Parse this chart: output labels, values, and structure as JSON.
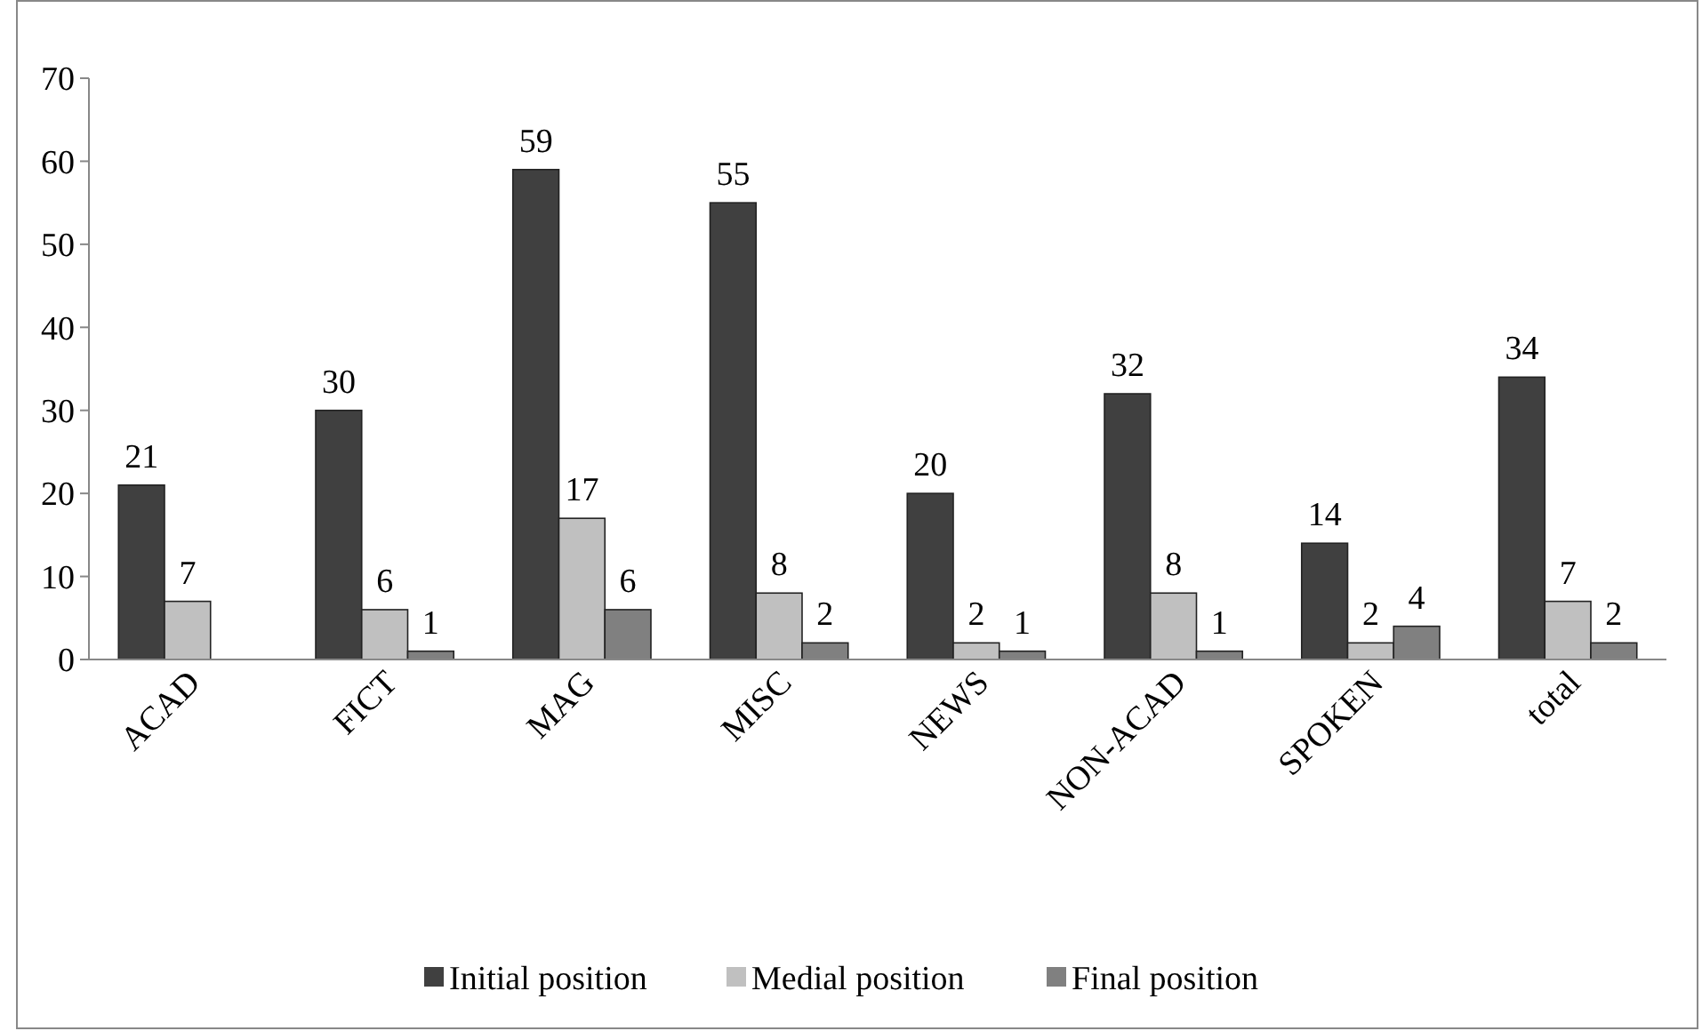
{
  "chart_data": {
    "type": "bar",
    "categories": [
      "ACAD",
      "FICT",
      "MAG",
      "MISC",
      "NEWS",
      "NON-ACAD",
      "SPOKEN",
      "total"
    ],
    "series": [
      {
        "name": "Initial position",
        "color": "#404040",
        "values": [
          21,
          30,
          59,
          55,
          20,
          32,
          14,
          34
        ],
        "value_labels": [
          "21",
          "30",
          "59",
          "55",
          "20",
          "32",
          "14",
          "34"
        ]
      },
      {
        "name": "Medial position",
        "color": "#c0c0c0",
        "values": [
          7,
          6,
          17,
          8,
          2,
          8,
          2,
          7
        ],
        "value_labels": [
          "7",
          "6",
          "17",
          "8",
          "2",
          "8",
          "2",
          "7"
        ]
      },
      {
        "name": "Final position",
        "color": "#808080",
        "values": [
          0,
          1,
          6,
          2,
          1,
          1,
          4,
          2
        ],
        "value_labels": [
          null,
          "1",
          "6",
          "2",
          "1",
          "1",
          "4",
          "2"
        ]
      }
    ],
    "ylim": [
      0,
      70
    ],
    "yticks": [
      0,
      10,
      20,
      30,
      40,
      50,
      60,
      70
    ],
    "grid": false,
    "legend": "bottom"
  }
}
